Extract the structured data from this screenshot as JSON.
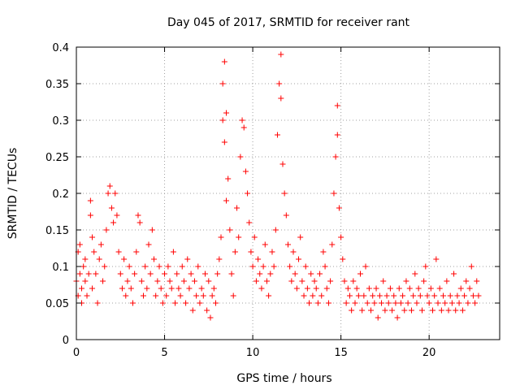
{
  "chart_data": {
    "type": "scatter",
    "title": "Day 045 of 2017, SRMTID for receiver rant",
    "xlabel": "GPS time / hours",
    "ylabel": "SRMTID / TECUs",
    "xlim": [
      0,
      24
    ],
    "ylim": [
      0,
      0.4
    ],
    "xticks": [
      0,
      5,
      10,
      15,
      20
    ],
    "xtick_labels": [
      "0",
      "5",
      "10",
      "15",
      "20"
    ],
    "yticks": [
      0,
      0.05,
      0.1,
      0.15,
      0.2,
      0.25,
      0.3,
      0.35,
      0.4
    ],
    "ytick_labels": [
      "0",
      "0.05",
      "0.1",
      "0.15",
      "0.2",
      "0.25",
      "0.3",
      "0.35",
      "0.4"
    ],
    "grid": true,
    "marker": "+",
    "marker_color": "#ff0000",
    "series": [
      {
        "name": "SRMTID",
        "points": [
          [
            0.0,
            0.08
          ],
          [
            0.1,
            0.12
          ],
          [
            0.1,
            0.06
          ],
          [
            0.2,
            0.09
          ],
          [
            0.2,
            0.13
          ],
          [
            0.3,
            0.05
          ],
          [
            0.3,
            0.07
          ],
          [
            0.4,
            0.1
          ],
          [
            0.5,
            0.08
          ],
          [
            0.5,
            0.11
          ],
          [
            0.6,
            0.06
          ],
          [
            0.7,
            0.09
          ],
          [
            0.8,
            0.19
          ],
          [
            0.8,
            0.17
          ],
          [
            0.9,
            0.14
          ],
          [
            0.9,
            0.07
          ],
          [
            1.0,
            0.12
          ],
          [
            1.1,
            0.09
          ],
          [
            1.2,
            0.05
          ],
          [
            1.3,
            0.11
          ],
          [
            1.4,
            0.13
          ],
          [
            1.5,
            0.08
          ],
          [
            1.6,
            0.1
          ],
          [
            1.7,
            0.15
          ],
          [
            1.8,
            0.2
          ],
          [
            1.9,
            0.21
          ],
          [
            2.0,
            0.18
          ],
          [
            2.1,
            0.16
          ],
          [
            2.2,
            0.2
          ],
          [
            2.3,
            0.17
          ],
          [
            2.4,
            0.12
          ],
          [
            2.5,
            0.09
          ],
          [
            2.6,
            0.07
          ],
          [
            2.7,
            0.11
          ],
          [
            2.8,
            0.06
          ],
          [
            2.9,
            0.08
          ],
          [
            3.0,
            0.1
          ],
          [
            3.1,
            0.07
          ],
          [
            3.2,
            0.05
          ],
          [
            3.3,
            0.09
          ],
          [
            3.4,
            0.12
          ],
          [
            3.5,
            0.17
          ],
          [
            3.6,
            0.16
          ],
          [
            3.7,
            0.08
          ],
          [
            3.8,
            0.06
          ],
          [
            3.9,
            0.1
          ],
          [
            4.0,
            0.07
          ],
          [
            4.1,
            0.13
          ],
          [
            4.2,
            0.09
          ],
          [
            4.3,
            0.15
          ],
          [
            4.4,
            0.11
          ],
          [
            4.5,
            0.06
          ],
          [
            4.6,
            0.08
          ],
          [
            4.7,
            0.1
          ],
          [
            4.8,
            0.07
          ],
          [
            4.9,
            0.05
          ],
          [
            5.0,
            0.09
          ],
          [
            5.1,
            0.06
          ],
          [
            5.2,
            0.1
          ],
          [
            5.3,
            0.08
          ],
          [
            5.4,
            0.07
          ],
          [
            5.5,
            0.12
          ],
          [
            5.6,
            0.05
          ],
          [
            5.7,
            0.09
          ],
          [
            5.8,
            0.07
          ],
          [
            5.9,
            0.06
          ],
          [
            6.0,
            0.1
          ],
          [
            6.1,
            0.08
          ],
          [
            6.2,
            0.05
          ],
          [
            6.3,
            0.11
          ],
          [
            6.4,
            0.07
          ],
          [
            6.5,
            0.09
          ],
          [
            6.6,
            0.04
          ],
          [
            6.7,
            0.08
          ],
          [
            6.8,
            0.06
          ],
          [
            6.9,
            0.1
          ],
          [
            7.0,
            0.05
          ],
          [
            7.1,
            0.07
          ],
          [
            7.2,
            0.06
          ],
          [
            7.3,
            0.09
          ],
          [
            7.4,
            0.04
          ],
          [
            7.5,
            0.08
          ],
          [
            7.6,
            0.03
          ],
          [
            7.7,
            0.06
          ],
          [
            7.8,
            0.07
          ],
          [
            7.9,
            0.05
          ],
          [
            8.0,
            0.09
          ],
          [
            8.1,
            0.11
          ],
          [
            8.2,
            0.14
          ],
          [
            8.3,
            0.3
          ],
          [
            8.3,
            0.35
          ],
          [
            8.4,
            0.38
          ],
          [
            8.4,
            0.27
          ],
          [
            8.5,
            0.19
          ],
          [
            8.5,
            0.31
          ],
          [
            8.6,
            0.22
          ],
          [
            8.7,
            0.15
          ],
          [
            8.8,
            0.09
          ],
          [
            8.9,
            0.06
          ],
          [
            9.0,
            0.12
          ],
          [
            9.1,
            0.18
          ],
          [
            9.2,
            0.14
          ],
          [
            9.3,
            0.25
          ],
          [
            9.4,
            0.3
          ],
          [
            9.5,
            0.29
          ],
          [
            9.6,
            0.23
          ],
          [
            9.7,
            0.2
          ],
          [
            9.8,
            0.16
          ],
          [
            9.9,
            0.12
          ],
          [
            10.0,
            0.1
          ],
          [
            10.1,
            0.14
          ],
          [
            10.2,
            0.08
          ],
          [
            10.3,
            0.11
          ],
          [
            10.4,
            0.09
          ],
          [
            10.5,
            0.07
          ],
          [
            10.6,
            0.1
          ],
          [
            10.7,
            0.13
          ],
          [
            10.8,
            0.08
          ],
          [
            10.9,
            0.06
          ],
          [
            11.0,
            0.09
          ],
          [
            11.1,
            0.12
          ],
          [
            11.2,
            0.1
          ],
          [
            11.3,
            0.15
          ],
          [
            11.4,
            0.28
          ],
          [
            11.5,
            0.35
          ],
          [
            11.6,
            0.39
          ],
          [
            11.6,
            0.33
          ],
          [
            11.7,
            0.24
          ],
          [
            11.8,
            0.2
          ],
          [
            11.9,
            0.17
          ],
          [
            12.0,
            0.13
          ],
          [
            12.1,
            0.1
          ],
          [
            12.2,
            0.08
          ],
          [
            12.3,
            0.12
          ],
          [
            12.4,
            0.09
          ],
          [
            12.5,
            0.07
          ],
          [
            12.6,
            0.11
          ],
          [
            12.7,
            0.14
          ],
          [
            12.8,
            0.08
          ],
          [
            12.9,
            0.06
          ],
          [
            13.0,
            0.1
          ],
          [
            13.1,
            0.07
          ],
          [
            13.2,
            0.05
          ],
          [
            13.3,
            0.09
          ],
          [
            13.4,
            0.06
          ],
          [
            13.5,
            0.08
          ],
          [
            13.6,
            0.07
          ],
          [
            13.7,
            0.05
          ],
          [
            13.8,
            0.09
          ],
          [
            13.9,
            0.06
          ],
          [
            14.0,
            0.12
          ],
          [
            14.1,
            0.1
          ],
          [
            14.2,
            0.07
          ],
          [
            14.3,
            0.05
          ],
          [
            14.4,
            0.08
          ],
          [
            14.5,
            0.13
          ],
          [
            14.6,
            0.2
          ],
          [
            14.7,
            0.25
          ],
          [
            14.8,
            0.32
          ],
          [
            14.8,
            0.28
          ],
          [
            14.9,
            0.18
          ],
          [
            15.0,
            0.14
          ],
          [
            15.1,
            0.11
          ],
          [
            15.2,
            0.08
          ],
          [
            15.3,
            0.05
          ],
          [
            15.4,
            0.07
          ],
          [
            15.5,
            0.06
          ],
          [
            15.6,
            0.04
          ],
          [
            15.7,
            0.08
          ],
          [
            15.8,
            0.05
          ],
          [
            15.9,
            0.07
          ],
          [
            16.0,
            0.06
          ],
          [
            16.1,
            0.09
          ],
          [
            16.2,
            0.04
          ],
          [
            16.3,
            0.06
          ],
          [
            16.4,
            0.1
          ],
          [
            16.5,
            0.05
          ],
          [
            16.6,
            0.07
          ],
          [
            16.7,
            0.04
          ],
          [
            16.8,
            0.06
          ],
          [
            16.9,
            0.05
          ],
          [
            17.0,
            0.07
          ],
          [
            17.1,
            0.03
          ],
          [
            17.2,
            0.06
          ],
          [
            17.3,
            0.05
          ],
          [
            17.4,
            0.08
          ],
          [
            17.5,
            0.04
          ],
          [
            17.6,
            0.06
          ],
          [
            17.7,
            0.05
          ],
          [
            17.8,
            0.07
          ],
          [
            17.9,
            0.04
          ],
          [
            18.0,
            0.06
          ],
          [
            18.1,
            0.05
          ],
          [
            18.2,
            0.03
          ],
          [
            18.3,
            0.07
          ],
          [
            18.4,
            0.05
          ],
          [
            18.5,
            0.06
          ],
          [
            18.6,
            0.04
          ],
          [
            18.7,
            0.08
          ],
          [
            18.8,
            0.05
          ],
          [
            18.9,
            0.07
          ],
          [
            19.0,
            0.04
          ],
          [
            19.1,
            0.06
          ],
          [
            19.2,
            0.09
          ],
          [
            19.3,
            0.05
          ],
          [
            19.4,
            0.07
          ],
          [
            19.5,
            0.06
          ],
          [
            19.6,
            0.04
          ],
          [
            19.7,
            0.08
          ],
          [
            19.8,
            0.1
          ],
          [
            19.9,
            0.06
          ],
          [
            20.0,
            0.05
          ],
          [
            20.1,
            0.07
          ],
          [
            20.2,
            0.04
          ],
          [
            20.3,
            0.06
          ],
          [
            20.4,
            0.11
          ],
          [
            20.5,
            0.05
          ],
          [
            20.6,
            0.07
          ],
          [
            20.7,
            0.04
          ],
          [
            20.8,
            0.06
          ],
          [
            20.9,
            0.05
          ],
          [
            21.0,
            0.08
          ],
          [
            21.1,
            0.04
          ],
          [
            21.2,
            0.06
          ],
          [
            21.3,
            0.05
          ],
          [
            21.4,
            0.09
          ],
          [
            21.5,
            0.04
          ],
          [
            21.6,
            0.06
          ],
          [
            21.7,
            0.05
          ],
          [
            21.8,
            0.07
          ],
          [
            21.9,
            0.04
          ],
          [
            22.0,
            0.06
          ],
          [
            22.1,
            0.08
          ],
          [
            22.2,
            0.05
          ],
          [
            22.3,
            0.07
          ],
          [
            22.4,
            0.1
          ],
          [
            22.5,
            0.06
          ],
          [
            22.6,
            0.05
          ],
          [
            22.7,
            0.08
          ],
          [
            22.8,
            0.06
          ]
        ]
      }
    ]
  }
}
